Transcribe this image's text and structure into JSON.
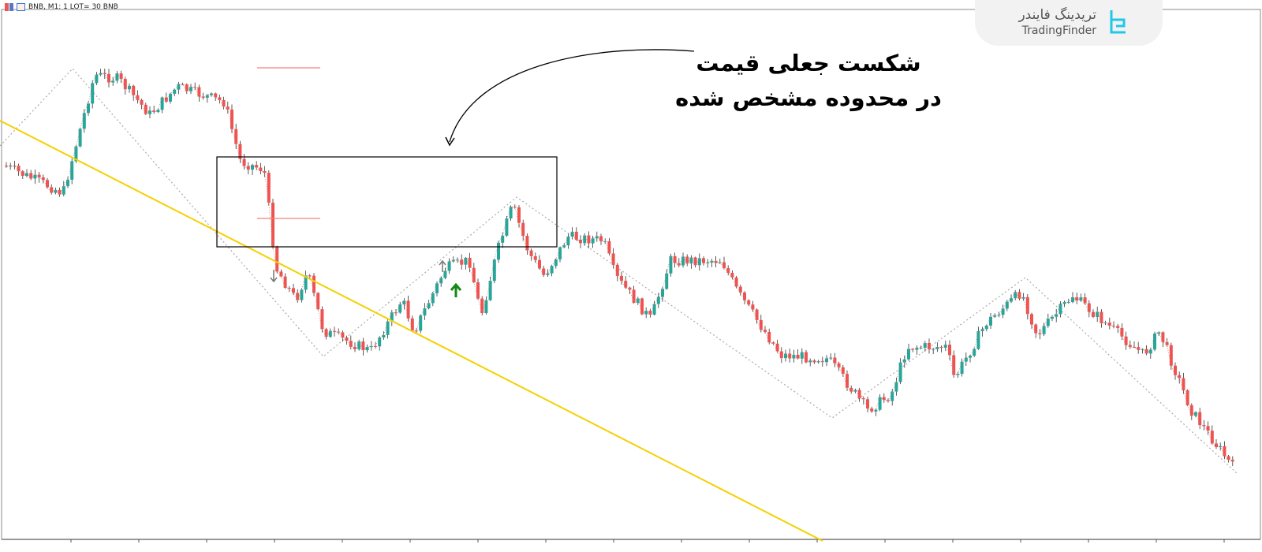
{
  "header": {
    "symbol_info": "BNB, M1:  1 LOT= 30 BNB"
  },
  "logo": {
    "persian_name": "تریدینگ فایندر",
    "english_name": "TradingFinder"
  },
  "annotation": {
    "line1": "شکست جعلی قیمت",
    "line2": "در محدوده مشخص شده"
  },
  "colors": {
    "bull": "#26a69a",
    "bear": "#ef5350",
    "trendline": "#f5d000",
    "zigzag": "#aaaaaa",
    "level": "#f08080",
    "buy_arrow": "#138a13",
    "signal_arrow": "#777777",
    "logo_accent": "#1fc8e8"
  }
}
